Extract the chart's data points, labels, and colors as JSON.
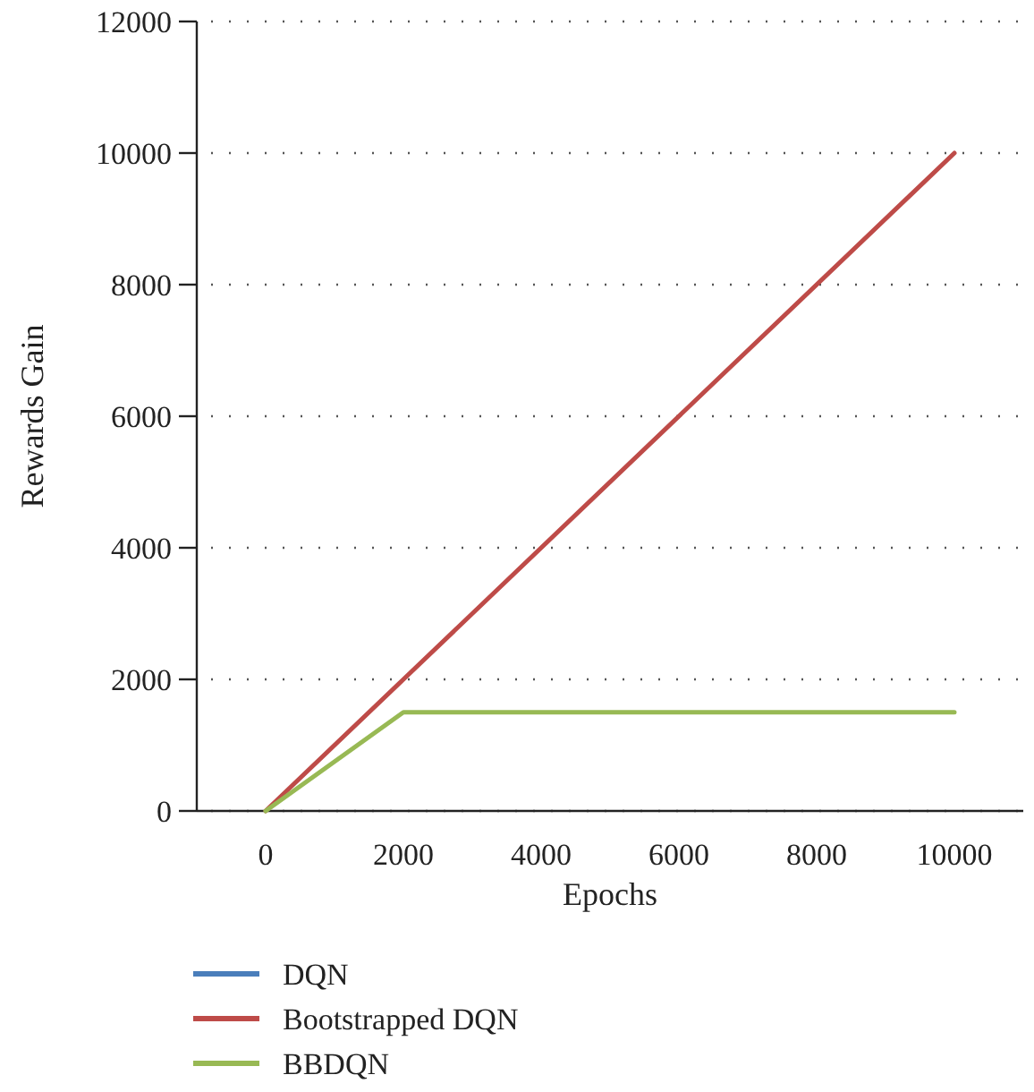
{
  "chart_data": {
    "type": "line",
    "xlabel": "Epochs",
    "ylabel": "Rewards Gain",
    "x": [
      0,
      2000,
      10000
    ],
    "series": [
      {
        "name": "DQN",
        "color": "#4a7ebb",
        "values": [
          null,
          null,
          null
        ]
      },
      {
        "name": "Bootstrapped DQN",
        "color": "#be4b48",
        "values": [
          0,
          2000,
          10000
        ]
      },
      {
        "name": "BBDQN",
        "color": "#98b954",
        "values": [
          0,
          1500,
          1500
        ]
      }
    ],
    "xlim": [
      -1000,
      11000
    ],
    "xticks": [
      0,
      2000,
      4000,
      6000,
      8000,
      10000
    ],
    "ylim": [
      0,
      12000
    ],
    "yticks": [
      0,
      2000,
      4000,
      6000,
      8000,
      10000,
      12000
    ],
    "grid": "y",
    "legend": "bottom",
    "line_style": "solid",
    "marker": "none"
  }
}
